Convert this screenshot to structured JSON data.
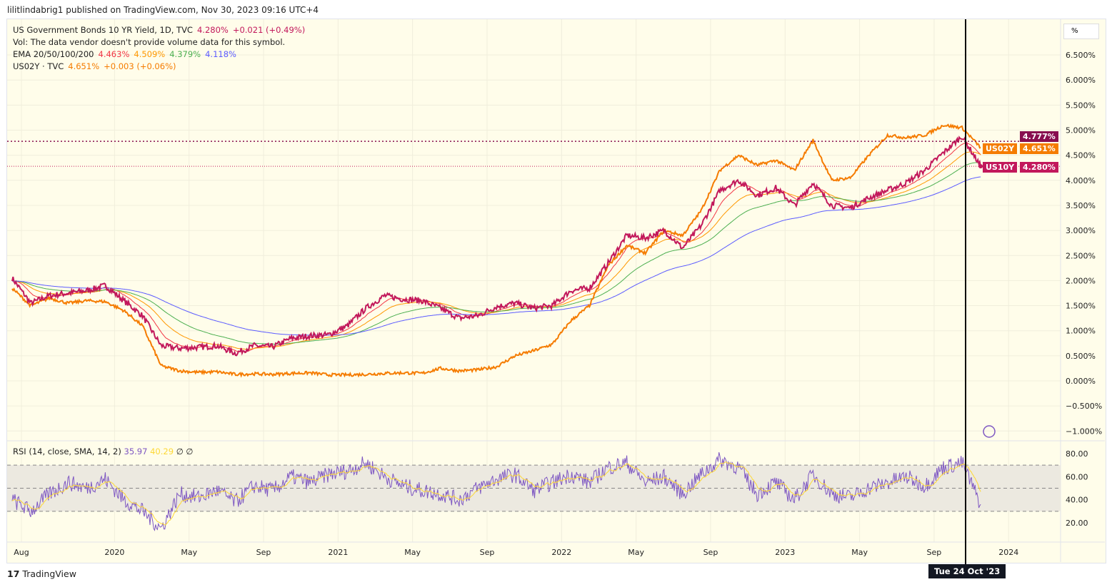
{
  "header": {
    "published": "lilitlindabrig1 published on TradingView.com, Nov 30, 2023 09:16 UTC+4"
  },
  "legend": {
    "symbol": "US Government Bonds 10 YR Yield, 1D, TVC",
    "price": "4.280%",
    "change": "+0.021 (+0.49%)",
    "vol": "Vol: The data vendor doesn't provide volume data for this symbol.",
    "ema_label": "EMA 20/50/100/200",
    "ema_values": [
      "4.463%",
      "4.509%",
      "4.379%",
      "4.118%"
    ],
    "compare_symbol": "US02Y · TVC",
    "compare_price": "4.651%",
    "compare_change": "+0.003 (+0.06%)"
  },
  "rsi_legend": {
    "label": "RSI (14, close, SMA, 14, 2)",
    "rsi": "35.97",
    "sma": "40.29",
    "extra1": "∅",
    "extra2": "∅"
  },
  "badges": {
    "ema_last": "4.777%",
    "us02y_name": "US02Y",
    "us02y_value": "4.651%",
    "us10y_name": "US10Y",
    "us10y_value": "4.280%"
  },
  "scale_mode": "%",
  "crosshair_label": "Tue 24 Oct '23",
  "footer": {
    "brand": "TradingView"
  },
  "colors": {
    "us10y": "#c2185b",
    "us02y": "#f57c00",
    "ema20": "#f23645",
    "ema50": "#ff9800",
    "ema100": "#4caf50",
    "ema200": "#5b5bff",
    "rsi": "#7e57c2",
    "rsi_sma": "#fdd835",
    "background": "#fffdea"
  },
  "chart_data": {
    "type": "line",
    "y_ticks": [
      "6.500%",
      "6.000%",
      "5.500%",
      "5.000%",
      "4.500%",
      "4.000%",
      "3.500%",
      "3.000%",
      "2.500%",
      "2.000%",
      "1.500%",
      "1.000%",
      "0.500%",
      "0.000%",
      "−0.500%",
      "−1.000%"
    ],
    "ylim": [
      -1.15,
      7.3
    ],
    "x_ticks": [
      {
        "label": "Aug",
        "date": "2019-08-01"
      },
      {
        "label": "2020",
        "date": "2020-01-01"
      },
      {
        "label": "May",
        "date": "2020-05-01"
      },
      {
        "label": "Sep",
        "date": "2020-09-01"
      },
      {
        "label": "2021",
        "date": "2021-01-01"
      },
      {
        "label": "May",
        "date": "2021-05-01"
      },
      {
        "label": "Sep",
        "date": "2021-09-01"
      },
      {
        "label": "2022",
        "date": "2022-01-01"
      },
      {
        "label": "May",
        "date": "2022-05-01"
      },
      {
        "label": "Sep",
        "date": "2022-09-01"
      },
      {
        "label": "2023",
        "date": "2023-01-01"
      },
      {
        "label": "May",
        "date": "2023-05-01"
      },
      {
        "label": "Sep",
        "date": "2023-09-01"
      },
      {
        "label": "2024",
        "date": "2024-01-01"
      }
    ],
    "dates": [
      "2019-07",
      "2019-08",
      "2019-09",
      "2019-10",
      "2019-11",
      "2019-12",
      "2020-01",
      "2020-02",
      "2020-03",
      "2020-04",
      "2020-05",
      "2020-06",
      "2020-07",
      "2020-08",
      "2020-09",
      "2020-10",
      "2020-11",
      "2020-12",
      "2021-01",
      "2021-02",
      "2021-03",
      "2021-04",
      "2021-05",
      "2021-06",
      "2021-07",
      "2021-08",
      "2021-09",
      "2021-10",
      "2021-11",
      "2021-12",
      "2022-01",
      "2022-02",
      "2022-03",
      "2022-04",
      "2022-05",
      "2022-06",
      "2022-07",
      "2022-08",
      "2022-09",
      "2022-10",
      "2022-11",
      "2022-12",
      "2023-01",
      "2023-02",
      "2023-03",
      "2023-04",
      "2023-05",
      "2023-06",
      "2023-07",
      "2023-08",
      "2023-09",
      "2023-10",
      "2023-11"
    ],
    "series": [
      {
        "name": "US10Y",
        "values": [
          2.05,
          1.55,
          1.7,
          1.75,
          1.8,
          1.9,
          1.6,
          1.3,
          0.7,
          0.65,
          0.67,
          0.7,
          0.55,
          0.7,
          0.68,
          0.85,
          0.9,
          0.92,
          1.1,
          1.45,
          1.7,
          1.63,
          1.6,
          1.45,
          1.25,
          1.3,
          1.48,
          1.55,
          1.45,
          1.5,
          1.8,
          1.85,
          2.35,
          2.9,
          2.85,
          3.0,
          2.65,
          3.1,
          3.8,
          4.0,
          3.7,
          3.85,
          3.5,
          3.95,
          3.5,
          3.45,
          3.65,
          3.8,
          3.95,
          4.2,
          4.55,
          4.88,
          4.28
        ]
      },
      {
        "name": "US02Y",
        "values": [
          1.85,
          1.5,
          1.65,
          1.55,
          1.6,
          1.58,
          1.4,
          1.1,
          0.3,
          0.2,
          0.17,
          0.18,
          0.13,
          0.14,
          0.13,
          0.15,
          0.16,
          0.12,
          0.12,
          0.13,
          0.15,
          0.16,
          0.15,
          0.25,
          0.2,
          0.22,
          0.28,
          0.5,
          0.6,
          0.73,
          1.2,
          1.5,
          2.3,
          2.7,
          2.55,
          3.0,
          2.9,
          3.4,
          4.2,
          4.5,
          4.3,
          4.4,
          4.2,
          4.8,
          4.0,
          4.05,
          4.5,
          4.9,
          4.85,
          4.9,
          5.1,
          5.05,
          4.651
        ]
      }
    ],
    "rsi": {
      "ylim": [
        3,
        90
      ],
      "y_ticks": [
        "80.00",
        "60.00",
        "40.00",
        "20.00"
      ],
      "levels": [
        70,
        50,
        30
      ],
      "values": [
        40,
        30,
        45,
        55,
        50,
        58,
        40,
        30,
        15,
        45,
        42,
        48,
        38,
        52,
        48,
        60,
        55,
        62,
        65,
        72,
        60,
        52,
        48,
        45,
        40,
        50,
        58,
        62,
        48,
        55,
        62,
        55,
        68,
        72,
        55,
        60,
        45,
        62,
        75,
        68,
        45,
        55,
        40,
        62,
        45,
        42,
        50,
        55,
        60,
        52,
        68,
        72,
        36
      ]
    }
  }
}
